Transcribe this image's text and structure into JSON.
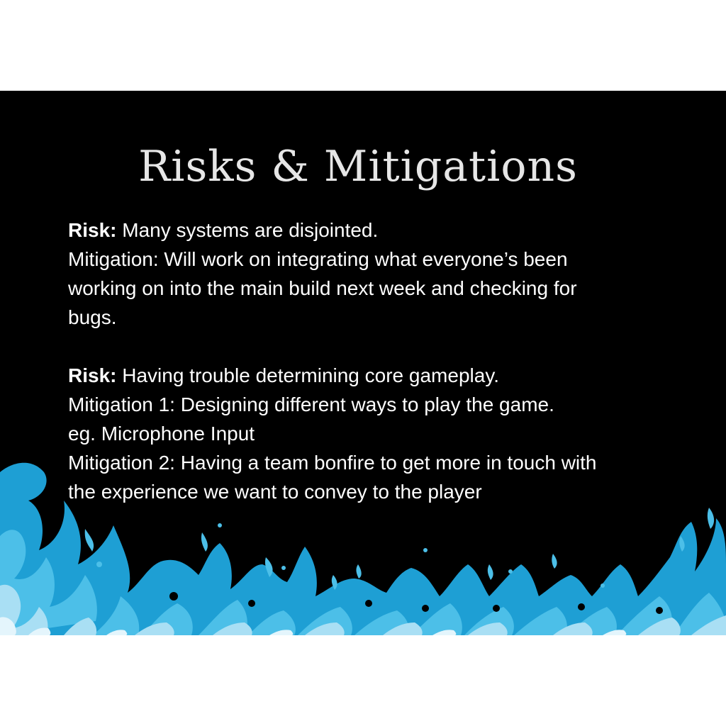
{
  "slide": {
    "title": "Risks & Mitigations",
    "risk1": {
      "label": "Risk:",
      "text": " Many systems are disjointed.",
      "mitigation_lines": [
        "Mitigation: Will work on integrating what everyone’s been",
        "working on into the main build next week and checking for",
        "bugs."
      ]
    },
    "risk2": {
      "label": "Risk:",
      "text": " Having trouble determining core gameplay.",
      "mitigation_lines": [
        "Mitigation 1: Designing different ways to play the game.",
        "eg. Microphone Input",
        "Mitigation 2: Having a team bonfire to get more in touch with",
        "the experience we want to convey to the player"
      ]
    }
  },
  "colors": {
    "background": "#000000",
    "title": "#e6e6e6",
    "text": "#ffffff",
    "flame_dark": "#1e9fd4",
    "flame_mid": "#4cbfe8",
    "flame_light": "#a9dff4",
    "flame_core": "#e4f5fc"
  },
  "decoration": {
    "flames_icon": "blue-flames-border"
  }
}
